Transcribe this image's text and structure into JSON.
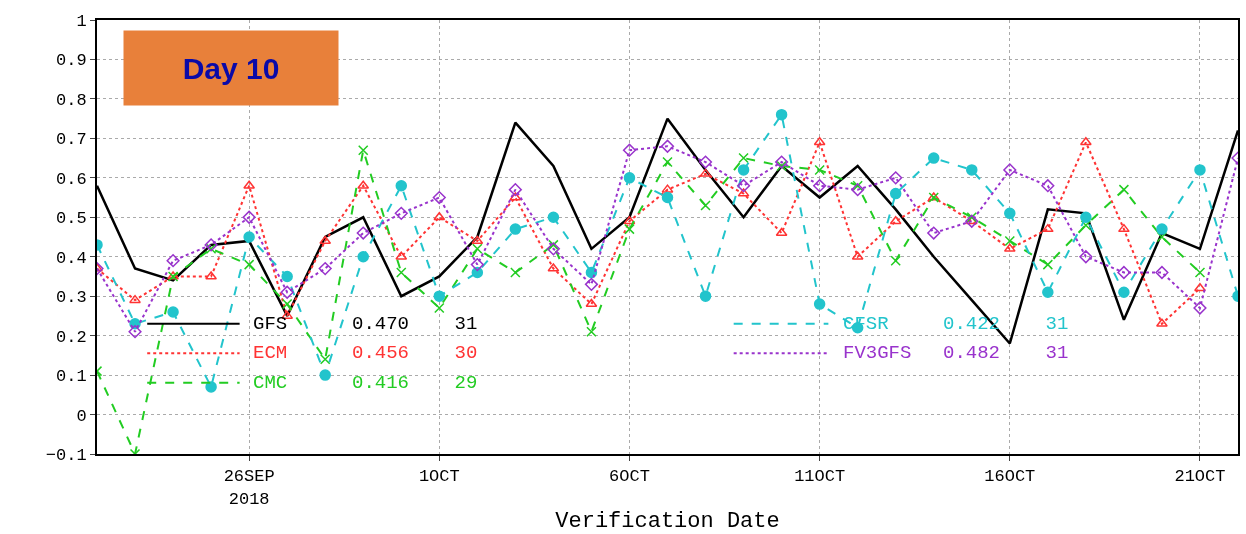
{
  "chart_data": {
    "type": "line",
    "title": "Day 10",
    "xlabel": "Verification Date",
    "x": [
      "2018-09-22",
      "2018-09-23",
      "2018-09-24",
      "2018-09-25",
      "2018-09-26",
      "2018-09-27",
      "2018-09-28",
      "2018-09-29",
      "2018-09-30",
      "2018-10-01",
      "2018-10-02",
      "2018-10-03",
      "2018-10-04",
      "2018-10-05",
      "2018-10-06",
      "2018-10-07",
      "2018-10-08",
      "2018-10-09",
      "2018-10-10",
      "2018-10-11",
      "2018-10-12",
      "2018-10-13",
      "2018-10-14",
      "2018-10-15",
      "2018-10-16",
      "2018-10-17",
      "2018-10-18",
      "2018-10-19",
      "2018-10-20",
      "2018-10-21",
      "2018-10-22"
    ],
    "series": [
      {
        "name": "GFS",
        "color": "#000000",
        "marker": "none",
        "line_style": "solid",
        "values": [
          0.58,
          0.37,
          0.34,
          0.43,
          0.44,
          0.25,
          0.45,
          0.5,
          0.3,
          0.35,
          0.45,
          0.74,
          0.63,
          0.42,
          0.5,
          0.75,
          0.62,
          0.5,
          0.63,
          0.55,
          0.63,
          0.52,
          0.4,
          0.29,
          0.18,
          0.52,
          0.51,
          0.24,
          0.46,
          0.42,
          0.72
        ]
      },
      {
        "name": "ECM",
        "color": "#ff3333",
        "marker": "triangle",
        "line_style": "dotted",
        "values": [
          0.37,
          0.29,
          0.35,
          0.35,
          0.58,
          0.25,
          0.44,
          0.58,
          0.4,
          0.5,
          0.44,
          0.55,
          0.37,
          0.28,
          0.49,
          0.57,
          0.61,
          0.56,
          0.46,
          0.69,
          0.4,
          0.49,
          0.55,
          0.49,
          0.42,
          0.47,
          0.69,
          0.47,
          0.23,
          0.32,
          null
        ]
      },
      {
        "name": "CMC",
        "color": "#22cc22",
        "marker": "cross",
        "line_style": "dashed",
        "values": [
          0.11,
          -0.1,
          0.35,
          0.42,
          0.38,
          0.28,
          0.14,
          0.67,
          0.36,
          0.27,
          0.42,
          0.36,
          0.43,
          0.21,
          0.47,
          0.64,
          0.53,
          0.65,
          0.63,
          0.62,
          0.58,
          0.39,
          0.55,
          0.5,
          0.44,
          0.38,
          0.48,
          0.57,
          0.45,
          0.36,
          null
        ]
      },
      {
        "name": "CFSR",
        "color": "#22c4cc",
        "marker": "circle",
        "line_style": "dashed",
        "values": [
          0.43,
          0.23,
          0.26,
          0.07,
          0.45,
          0.35,
          0.1,
          0.4,
          0.58,
          0.3,
          0.36,
          0.47,
          0.5,
          0.36,
          0.6,
          0.55,
          0.3,
          0.62,
          0.76,
          0.28,
          0.22,
          0.56,
          0.65,
          0.62,
          0.51,
          0.31,
          0.5,
          0.31,
          0.47,
          0.62,
          0.3
        ]
      },
      {
        "name": "FV3GFS",
        "color": "#9933cc",
        "marker": "diamond",
        "line_style": "dotted",
        "values": [
          0.37,
          0.21,
          0.39,
          0.43,
          0.5,
          0.31,
          0.37,
          0.46,
          0.51,
          0.55,
          0.38,
          0.57,
          0.42,
          0.33,
          0.67,
          0.68,
          0.64,
          0.58,
          0.64,
          0.58,
          0.57,
          0.6,
          0.46,
          0.49,
          0.62,
          0.58,
          0.4,
          0.36,
          0.36,
          0.27,
          0.65
        ]
      }
    ],
    "annotations": [
      "0.470    31",
      "0.456    30",
      "0.416    29",
      "0.422    31",
      "0.482    31"
    ],
    "xlim": [
      "2018-09-22",
      "2018-10-22"
    ],
    "xticks": [
      {
        "value": "2018-09-26",
        "label": "26SEP\n2018"
      },
      {
        "value": "2018-10-01",
        "label": "1OCT"
      },
      {
        "value": "2018-10-06",
        "label": "6OCT"
      },
      {
        "value": "2018-10-11",
        "label": "11OCT"
      },
      {
        "value": "2018-10-16",
        "label": "16OCT"
      },
      {
        "value": "2018-10-21",
        "label": "21OCT"
      }
    ],
    "ylim": [
      -0.1,
      1
    ],
    "yticks": [
      -0.1,
      0,
      0.1,
      0.2,
      0.3,
      0.4,
      0.5,
      0.6,
      0.7,
      0.8,
      0.9,
      1
    ],
    "grid": true,
    "legend": "bottom"
  }
}
